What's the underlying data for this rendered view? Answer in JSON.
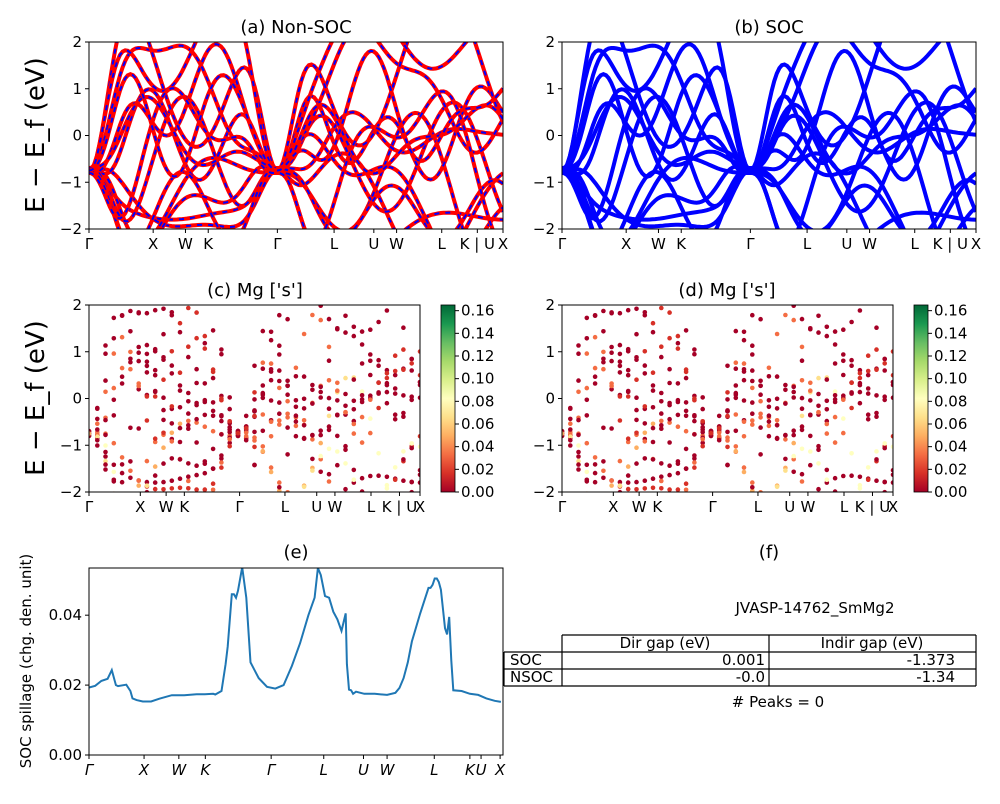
{
  "chart_data": [
    {
      "panel": "a",
      "type": "line",
      "title": "(a) Non-SOC",
      "ylabel": "E − E_f (eV)",
      "ylim": [
        -2,
        2
      ],
      "yticks": [
        "2",
        "1",
        "0",
        "−1",
        "−2"
      ],
      "xticks": [
        "Γ",
        "X",
        "W",
        "K",
        "Γ",
        "L",
        "U",
        "W",
        "L",
        "K | U",
        "X"
      ],
      "xtick_pos": [
        0,
        0.155,
        0.233,
        0.288,
        0.455,
        0.592,
        0.688,
        0.743,
        0.852,
        0.938,
        1.0
      ],
      "colors": [
        "#ff0000",
        "#0000ff"
      ],
      "style": "red solid bands overlaid with blue dashes"
    },
    {
      "panel": "b",
      "type": "line",
      "title": "(b) SOC",
      "ylim": [
        -2,
        2
      ],
      "yticks": [
        "2",
        "1",
        "0",
        "−1",
        "−2"
      ],
      "xticks": [
        "Γ",
        "X",
        "W",
        "K",
        "Γ",
        "L",
        "U",
        "W",
        "L",
        "K | U",
        "X"
      ],
      "xtick_pos": [
        0,
        0.155,
        0.233,
        0.288,
        0.455,
        0.592,
        0.688,
        0.743,
        0.852,
        0.938,
        1.0
      ],
      "colors": [
        "#0000ff"
      ]
    },
    {
      "panel": "c",
      "type": "scatter",
      "title": "(c)  Mg ['s']",
      "ylabel": "E − E_f (eV)",
      "ylim": [
        -2,
        2
      ],
      "yticks": [
        "2",
        "1",
        "0",
        "−1",
        "−2"
      ],
      "xticks": [
        "Γ",
        "X",
        "W",
        "K",
        "Γ",
        "L",
        "U",
        "W",
        "L",
        "K | U",
        "X"
      ],
      "xtick_pos": [
        0,
        0.155,
        0.233,
        0.288,
        0.455,
        0.592,
        0.688,
        0.743,
        0.852,
        0.938,
        1.0
      ],
      "colorbar_ticks": [
        "0.16",
        "0.14",
        "0.12",
        "0.10",
        "0.08",
        "0.06",
        "0.04",
        "0.02",
        "0.00"
      ],
      "colorbar_range": [
        0,
        0.165
      ],
      "colormap": "RdYlGn"
    },
    {
      "panel": "d",
      "type": "scatter",
      "title": "(d) Mg ['s']",
      "ylim": [
        -2,
        2
      ],
      "yticks": [
        "2",
        "1",
        "0",
        "−1",
        "−2"
      ],
      "xticks": [
        "Γ",
        "X",
        "W",
        "K",
        "Γ",
        "L",
        "U",
        "W",
        "L",
        "K | U",
        "X"
      ],
      "xtick_pos": [
        0,
        0.155,
        0.233,
        0.288,
        0.455,
        0.592,
        0.688,
        0.743,
        0.852,
        0.938,
        1.0
      ],
      "colorbar_ticks": [
        "0.16",
        "0.14",
        "0.12",
        "0.10",
        "0.08",
        "0.06",
        "0.04",
        "0.02",
        "0.00"
      ],
      "colorbar_range": [
        0,
        0.165
      ],
      "colormap": "RdYlGn"
    },
    {
      "panel": "e",
      "type": "line",
      "title": "(e)",
      "ylabel": "SOC spillage (chg. den. unit)",
      "ylim": [
        0,
        0.0535
      ],
      "yticks": [
        {
          "label": "0.04",
          "value": 0.04
        },
        {
          "label": "0.02",
          "value": 0.02
        },
        {
          "label": "0.00",
          "value": 0.0
        }
      ],
      "xticks": [
        "Γ",
        "X",
        "W",
        "K",
        "Γ",
        "L",
        "U",
        "W",
        "L",
        "K",
        "U",
        "X"
      ],
      "xtick_pos": [
        0,
        0.133,
        0.217,
        0.281,
        0.44,
        0.567,
        0.663,
        0.72,
        0.834,
        0.92,
        0.947,
        0.993
      ],
      "color": "#1f77b4",
      "x": [
        0,
        0.015,
        0.03,
        0.045,
        0.055,
        0.065,
        0.07,
        0.09,
        0.1,
        0.105,
        0.115,
        0.13,
        0.15,
        0.17,
        0.2,
        0.23,
        0.26,
        0.28,
        0.3,
        0.305,
        0.32,
        0.33,
        0.335,
        0.345,
        0.35,
        0.355,
        0.36,
        0.37,
        0.38,
        0.39,
        0.41,
        0.43,
        0.45,
        0.47,
        0.49,
        0.51,
        0.53,
        0.545,
        0.553,
        0.56,
        0.57,
        0.58,
        0.59,
        0.6,
        0.61,
        0.62,
        0.623,
        0.628,
        0.633,
        0.638,
        0.645,
        0.665,
        0.69,
        0.72,
        0.74,
        0.75,
        0.76,
        0.77,
        0.78,
        0.8,
        0.82,
        0.825,
        0.83,
        0.835,
        0.84,
        0.845,
        0.85,
        0.86,
        0.865,
        0.87,
        0.875,
        0.88,
        0.9,
        0.92,
        0.94,
        0.96,
        0.98,
        0.995
      ],
      "y": [
        0.0193,
        0.0198,
        0.0212,
        0.0218,
        0.0243,
        0.02,
        0.0197,
        0.0201,
        0.0183,
        0.0162,
        0.0157,
        0.0153,
        0.0153,
        0.0161,
        0.0171,
        0.0171,
        0.0174,
        0.0174,
        0.0175,
        0.0173,
        0.0183,
        0.026,
        0.031,
        0.046,
        0.046,
        0.045,
        0.047,
        0.0537,
        0.045,
        0.0265,
        0.022,
        0.0195,
        0.019,
        0.02,
        0.0255,
        0.032,
        0.04,
        0.045,
        0.0535,
        0.0515,
        0.0455,
        0.045,
        0.041,
        0.0388,
        0.0355,
        0.0405,
        0.026,
        0.0187,
        0.0185,
        0.0175,
        0.0181,
        0.0175,
        0.0175,
        0.0172,
        0.0178,
        0.0192,
        0.022,
        0.0265,
        0.0325,
        0.0405,
        0.0478,
        0.0478,
        0.0487,
        0.0505,
        0.0505,
        0.0495,
        0.0473,
        0.0363,
        0.0345,
        0.0395,
        0.027,
        0.0185,
        0.0183,
        0.0175,
        0.0172,
        0.0162,
        0.0155,
        0.0152
      ]
    },
    {
      "panel": "f",
      "type": "table",
      "title": "(f)",
      "subtitle": "JVASP-14762_SmMg2",
      "columns": [
        "Dir gap (eV)",
        "Indir gap (eV)"
      ],
      "rows": [
        {
          "label": "SOC",
          "dir": "0.001",
          "indir": "-1.373"
        },
        {
          "label": "NSOC",
          "dir": "-0.0",
          "indir": "-1.34"
        }
      ],
      "footer": "# Peaks = 0"
    }
  ]
}
